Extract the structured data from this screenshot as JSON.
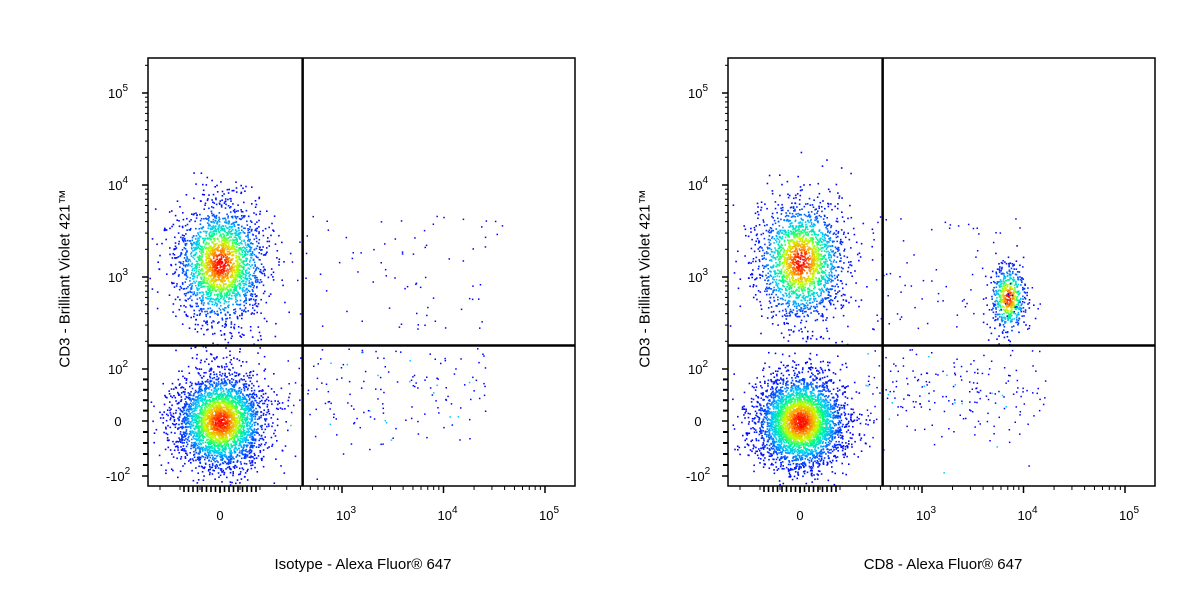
{
  "chart_data": [
    {
      "type": "scatter",
      "xlabel": "Isotype - Alexa Fluor® 647",
      "ylabel": "CD3 - Brilliant Violet 421™",
      "x_scale": "biexponential",
      "y_scale": "biexponential",
      "x_ticks": [
        "0",
        "10^3",
        "10^4",
        "10^5"
      ],
      "y_ticks": [
        "10^5",
        "10^4",
        "10^3",
        "10^2",
        "0",
        "-10^2"
      ],
      "gate": {
        "x": 320,
        "y": 180
      },
      "populations": [
        {
          "name": "",
          "x_center": 0,
          "y_center": 1400,
          "count": 2300
        },
        {
          "name": "",
          "x_center": 0,
          "y_center": 0,
          "count": 3200
        }
      ],
      "colormap": [
        "#0000ff",
        "#00c8ff",
        "#00ff80",
        "#c8ff00",
        "#ffa000",
        "#ff0000"
      ]
    },
    {
      "type": "scatter",
      "xlabel": "CD8 - Alexa Fluor® 647",
      "ylabel": "CD3 - Brilliant Violet 421™",
      "x_scale": "biexponential",
      "y_scale": "biexponential",
      "x_ticks": [
        "0",
        "10^3",
        "10^4",
        "10^5"
      ],
      "y_ticks": [
        "10^5",
        "10^4",
        "10^3",
        "10^2",
        "0",
        "-10^2"
      ],
      "gate": {
        "x": 320,
        "y": 180
      },
      "populations": [
        {
          "name": "",
          "x_center": 0,
          "y_center": 1500,
          "count": 2000
        },
        {
          "name": "",
          "x_center": 7000,
          "y_center": 600,
          "count": 550
        },
        {
          "name": "",
          "x_center": 0,
          "y_center": 0,
          "count": 3600
        }
      ],
      "colormap": [
        "#0000ff",
        "#00c8ff",
        "#00ff80",
        "#c8ff00",
        "#ffa000",
        "#ff0000"
      ]
    }
  ]
}
